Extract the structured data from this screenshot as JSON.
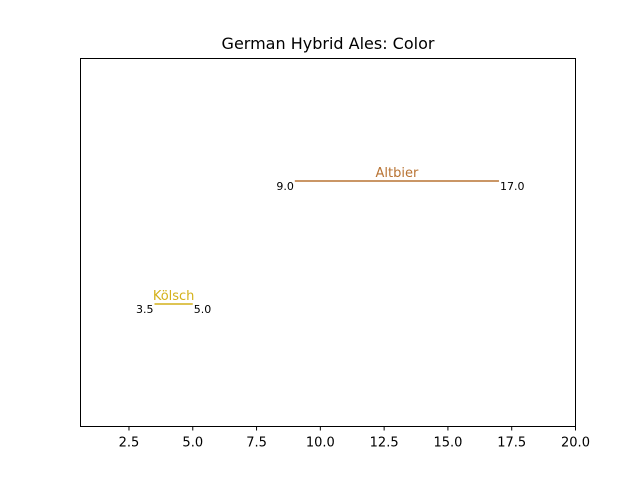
{
  "chart_data": {
    "type": "range",
    "title": "German Hybrid Ales: Color",
    "xlabel": "",
    "ylabel": "",
    "xlim": [
      0.6,
      20.0
    ],
    "grid": false,
    "legend": "none",
    "x_ticks": [
      2.5,
      5.0,
      7.5,
      10.0,
      12.5,
      15.0,
      17.5,
      20.0
    ],
    "x_tick_labels": [
      "2.5",
      "5.0",
      "7.5",
      "10.0",
      "12.5",
      "15.0",
      "17.5",
      "20.0"
    ],
    "ranges": [
      {
        "label": "Altbier",
        "low": 9.0,
        "high": 17.0,
        "low_label": "9.0",
        "high_label": "17.0",
        "color": "#b87333"
      },
      {
        "label": "Kölsch",
        "low": 3.5,
        "high": 5.0,
        "low_label": "3.5",
        "high_label": "5.0",
        "color": "#d4b11a"
      }
    ]
  }
}
